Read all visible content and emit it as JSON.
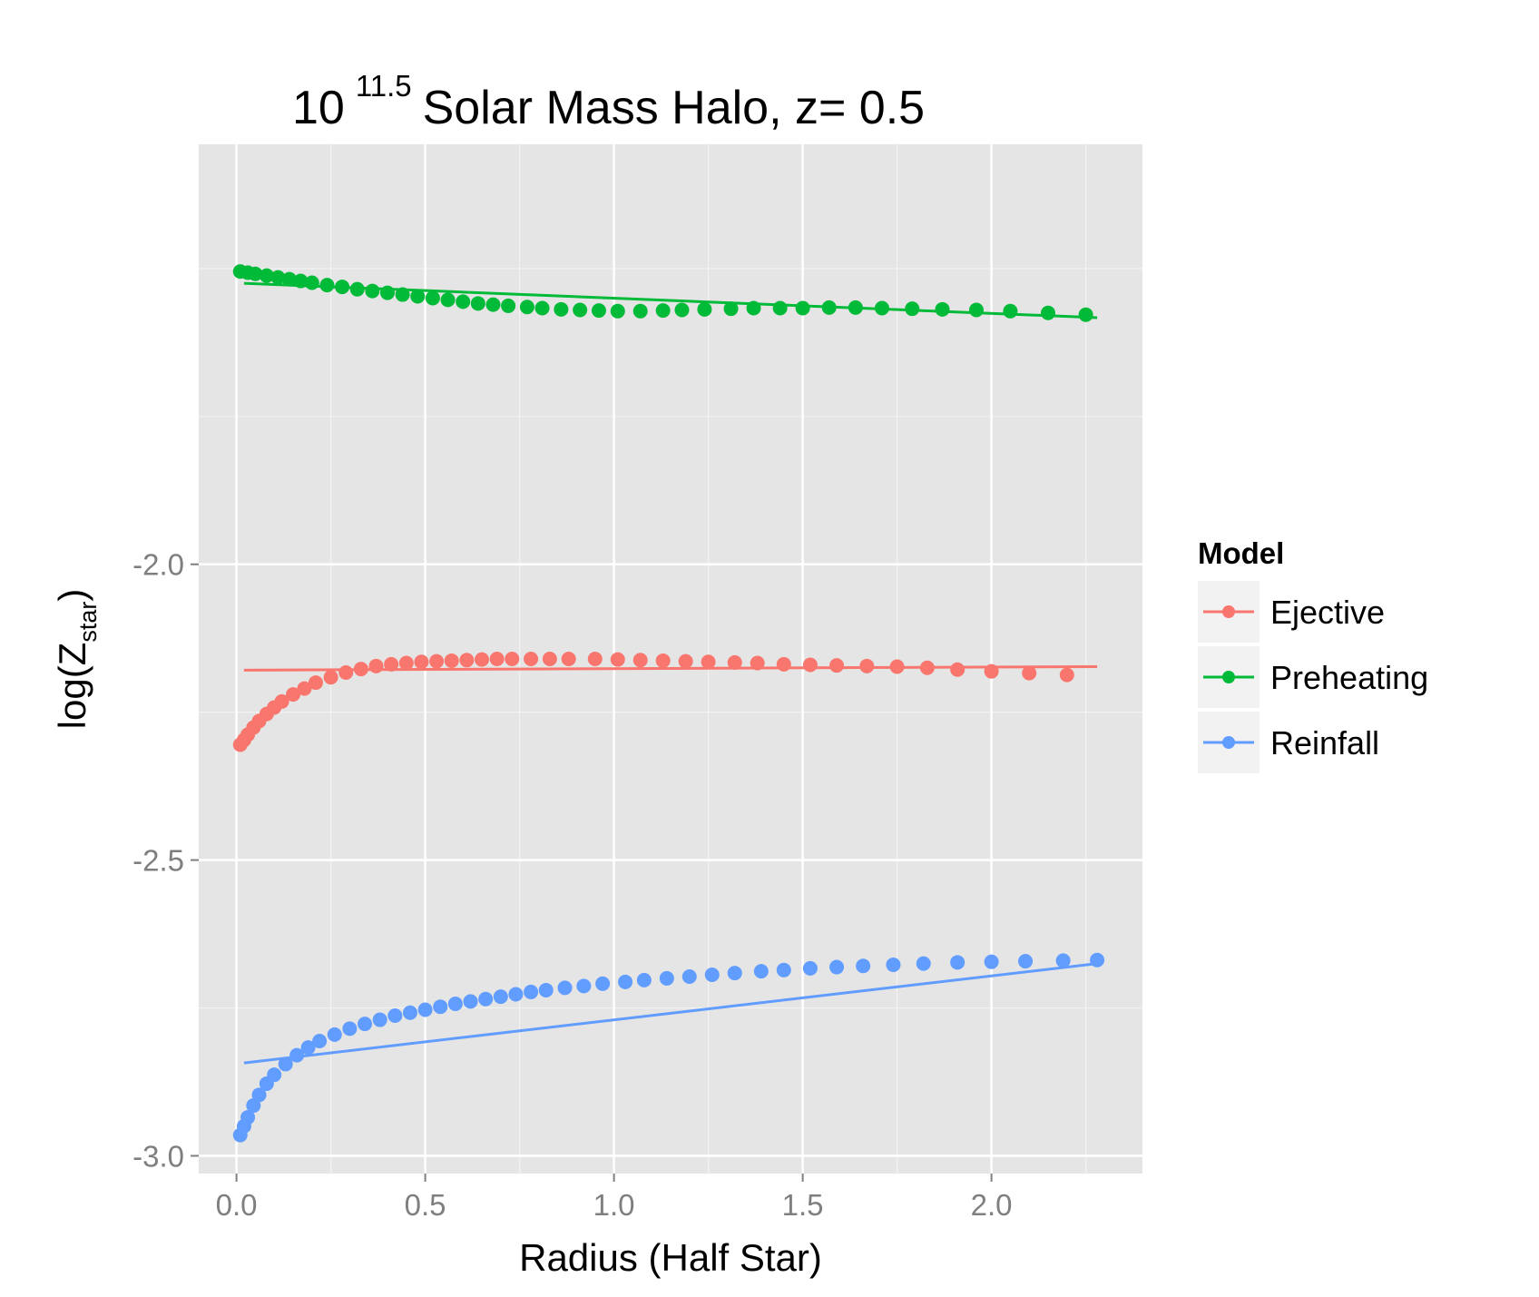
{
  "chart_data": {
    "type": "scatter",
    "title": {
      "base": "10",
      "exponent": "11.5",
      "rest": "Solar Mass Halo, z= 0.5"
    },
    "xlabel": "Radius (Half Star)",
    "ylabel": {
      "prefix": "log(Z",
      "subscript": "star",
      "suffix": ")"
    },
    "xlim": [
      -0.1,
      2.4
    ],
    "ylim": [
      -3.03,
      -1.29
    ],
    "x_ticks": [
      0.0,
      0.5,
      1.0,
      1.5,
      2.0
    ],
    "x_tick_labels": [
      "0.0",
      "0.5",
      "1.0",
      "1.5",
      "2.0"
    ],
    "y_ticks": [
      -2.0,
      -2.5,
      -3.0
    ],
    "y_tick_labels": [
      "-2.0",
      "-2.5",
      "-3.0"
    ],
    "grid": true,
    "legend": {
      "title": "Model",
      "position": "right"
    },
    "series": [
      {
        "name": "Ejective",
        "color": "#f8766d",
        "points": [
          [
            0.01,
            -2.305
          ],
          [
            0.02,
            -2.297
          ],
          [
            0.03,
            -2.288
          ],
          [
            0.045,
            -2.276
          ],
          [
            0.06,
            -2.265
          ],
          [
            0.08,
            -2.253
          ],
          [
            0.1,
            -2.242
          ],
          [
            0.12,
            -2.232
          ],
          [
            0.15,
            -2.22
          ],
          [
            0.18,
            -2.21
          ],
          [
            0.21,
            -2.2
          ],
          [
            0.25,
            -2.191
          ],
          [
            0.29,
            -2.183
          ],
          [
            0.33,
            -2.177
          ],
          [
            0.37,
            -2.172
          ],
          [
            0.41,
            -2.169
          ],
          [
            0.45,
            -2.167
          ],
          [
            0.49,
            -2.165
          ],
          [
            0.53,
            -2.164
          ],
          [
            0.57,
            -2.163
          ],
          [
            0.61,
            -2.162
          ],
          [
            0.65,
            -2.161
          ],
          [
            0.69,
            -2.16
          ],
          [
            0.73,
            -2.16
          ],
          [
            0.78,
            -2.16
          ],
          [
            0.83,
            -2.16
          ],
          [
            0.88,
            -2.16
          ],
          [
            0.95,
            -2.16
          ],
          [
            1.01,
            -2.161
          ],
          [
            1.07,
            -2.162
          ],
          [
            1.13,
            -2.163
          ],
          [
            1.19,
            -2.164
          ],
          [
            1.25,
            -2.165
          ],
          [
            1.32,
            -2.166
          ],
          [
            1.38,
            -2.167
          ],
          [
            1.45,
            -2.169
          ],
          [
            1.52,
            -2.17
          ],
          [
            1.59,
            -2.171
          ],
          [
            1.67,
            -2.172
          ],
          [
            1.75,
            -2.173
          ],
          [
            1.83,
            -2.175
          ],
          [
            1.91,
            -2.178
          ],
          [
            2.0,
            -2.181
          ],
          [
            2.1,
            -2.184
          ],
          [
            2.2,
            -2.187
          ]
        ],
        "fit": [
          [
            0.02,
            -2.179
          ],
          [
            2.28,
            -2.173
          ]
        ]
      },
      {
        "name": "Preheating",
        "color": "#00ba38",
        "points": [
          [
            0.01,
            -1.505
          ],
          [
            0.03,
            -1.507
          ],
          [
            0.05,
            -1.509
          ],
          [
            0.08,
            -1.512
          ],
          [
            0.11,
            -1.515
          ],
          [
            0.14,
            -1.518
          ],
          [
            0.17,
            -1.521
          ],
          [
            0.2,
            -1.524
          ],
          [
            0.24,
            -1.528
          ],
          [
            0.28,
            -1.531
          ],
          [
            0.32,
            -1.535
          ],
          [
            0.36,
            -1.538
          ],
          [
            0.4,
            -1.541
          ],
          [
            0.44,
            -1.544
          ],
          [
            0.48,
            -1.547
          ],
          [
            0.52,
            -1.55
          ],
          [
            0.56,
            -1.553
          ],
          [
            0.6,
            -1.556
          ],
          [
            0.64,
            -1.559
          ],
          [
            0.68,
            -1.561
          ],
          [
            0.72,
            -1.563
          ],
          [
            0.77,
            -1.565
          ],
          [
            0.81,
            -1.567
          ],
          [
            0.86,
            -1.569
          ],
          [
            0.91,
            -1.57
          ],
          [
            0.96,
            -1.571
          ],
          [
            1.01,
            -1.572
          ],
          [
            1.07,
            -1.572
          ],
          [
            1.13,
            -1.571
          ],
          [
            1.18,
            -1.57
          ],
          [
            1.24,
            -1.569
          ],
          [
            1.31,
            -1.568
          ],
          [
            1.37,
            -1.567
          ],
          [
            1.44,
            -1.567
          ],
          [
            1.5,
            -1.567
          ],
          [
            1.57,
            -1.566
          ],
          [
            1.64,
            -1.566
          ],
          [
            1.71,
            -1.567
          ],
          [
            1.79,
            -1.568
          ],
          [
            1.87,
            -1.569
          ],
          [
            1.96,
            -1.57
          ],
          [
            2.05,
            -1.572
          ],
          [
            2.15,
            -1.575
          ],
          [
            2.25,
            -1.578
          ]
        ],
        "fit": [
          [
            0.02,
            -1.525
          ],
          [
            2.28,
            -1.583
          ]
        ]
      },
      {
        "name": "Reinfall",
        "color": "#619cff",
        "points": [
          [
            0.01,
            -2.965
          ],
          [
            0.02,
            -2.95
          ],
          [
            0.03,
            -2.935
          ],
          [
            0.045,
            -2.915
          ],
          [
            0.06,
            -2.897
          ],
          [
            0.08,
            -2.878
          ],
          [
            0.1,
            -2.863
          ],
          [
            0.13,
            -2.845
          ],
          [
            0.16,
            -2.83
          ],
          [
            0.19,
            -2.817
          ],
          [
            0.22,
            -2.806
          ],
          [
            0.26,
            -2.795
          ],
          [
            0.3,
            -2.785
          ],
          [
            0.34,
            -2.777
          ],
          [
            0.38,
            -2.77
          ],
          [
            0.42,
            -2.763
          ],
          [
            0.46,
            -2.758
          ],
          [
            0.5,
            -2.753
          ],
          [
            0.54,
            -2.748
          ],
          [
            0.58,
            -2.743
          ],
          [
            0.62,
            -2.739
          ],
          [
            0.66,
            -2.735
          ],
          [
            0.7,
            -2.731
          ],
          [
            0.74,
            -2.727
          ],
          [
            0.78,
            -2.723
          ],
          [
            0.82,
            -2.72
          ],
          [
            0.87,
            -2.716
          ],
          [
            0.92,
            -2.713
          ],
          [
            0.97,
            -2.709
          ],
          [
            1.03,
            -2.706
          ],
          [
            1.08,
            -2.703
          ],
          [
            1.14,
            -2.7
          ],
          [
            1.2,
            -2.697
          ],
          [
            1.26,
            -2.694
          ],
          [
            1.32,
            -2.691
          ],
          [
            1.39,
            -2.688
          ],
          [
            1.45,
            -2.686
          ],
          [
            1.52,
            -2.683
          ],
          [
            1.59,
            -2.681
          ],
          [
            1.66,
            -2.679
          ],
          [
            1.74,
            -2.677
          ],
          [
            1.82,
            -2.675
          ],
          [
            1.91,
            -2.673
          ],
          [
            2.0,
            -2.672
          ],
          [
            2.09,
            -2.671
          ],
          [
            2.19,
            -2.67
          ],
          [
            2.28,
            -2.669
          ]
        ],
        "fit": [
          [
            0.02,
            -2.843
          ],
          [
            2.28,
            -2.675
          ]
        ]
      }
    ]
  }
}
